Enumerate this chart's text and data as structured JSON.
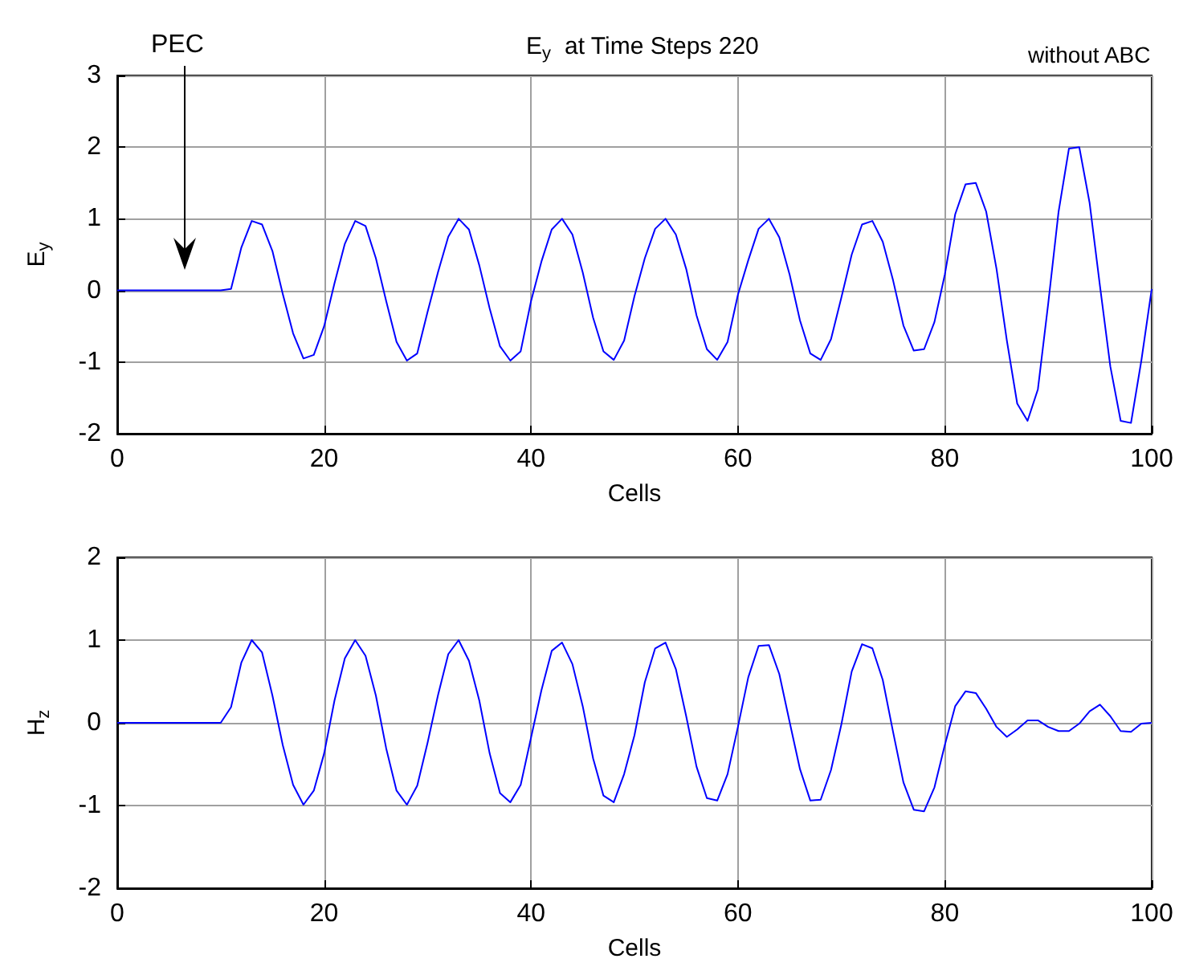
{
  "chart_data": [
    {
      "type": "line",
      "title": "E$_{y}$  at Time Steps 220",
      "xlabel": "Cells",
      "ylabel": "E$_{y}$",
      "annotations": [
        "without ABC",
        "PEC"
      ],
      "x": [
        0,
        1,
        2,
        3,
        4,
        5,
        6,
        7,
        8,
        9,
        10,
        11,
        12,
        13,
        14,
        15,
        16,
        17,
        18,
        19,
        20,
        21,
        22,
        23,
        24,
        25,
        26,
        27,
        28,
        29,
        30,
        31,
        32,
        33,
        34,
        35,
        36,
        37,
        38,
        39,
        40,
        41,
        42,
        43,
        44,
        45,
        46,
        47,
        48,
        49,
        50,
        51,
        52,
        53,
        54,
        55,
        56,
        57,
        58,
        59,
        60,
        61,
        62,
        63,
        64,
        65,
        66,
        67,
        68,
        69,
        70,
        71,
        72,
        73,
        74,
        75,
        76,
        77,
        78,
        79,
        80,
        81,
        82,
        83,
        84,
        85,
        86,
        87,
        88,
        89,
        90,
        91,
        92,
        93,
        94,
        95,
        96,
        97,
        98,
        99,
        100
      ],
      "series": [
        {
          "color": "#0000ff",
          "values": [
            0,
            0,
            0,
            0,
            0,
            0,
            0,
            0,
            0,
            0,
            0,
            0.02,
            0.6,
            0.97,
            0.92,
            0.55,
            -0.05,
            -0.6,
            -0.95,
            -0.9,
            -0.5,
            0.1,
            0.65,
            0.97,
            0.9,
            0.45,
            -0.15,
            -0.72,
            -0.98,
            -0.88,
            -0.3,
            0.25,
            0.75,
            1,
            0.85,
            0.35,
            -0.25,
            -0.78,
            -0.98,
            -0.85,
            -0.15,
            0.4,
            0.85,
            1,
            0.78,
            0.25,
            -0.38,
            -0.85,
            -0.97,
            -0.7,
            -0.08,
            0.45,
            0.86,
            1,
            0.78,
            0.3,
            -0.35,
            -0.82,
            -0.97,
            -0.72,
            -0.06,
            0.42,
            0.86,
            1,
            0.74,
            0.22,
            -0.42,
            -0.88,
            -0.97,
            -0.68,
            -0.1,
            0.5,
            0.92,
            0.97,
            0.68,
            0.14,
            -0.49,
            -0.84,
            -0.82,
            -0.44,
            0.22,
            1.06,
            1.48,
            1.5,
            1.1,
            0.3,
            -0.7,
            -1.58,
            -1.82,
            -1.38,
            -0.18,
            1.1,
            1.98,
            2,
            1.22,
            0.06,
            -1.06,
            -1.82,
            -1.85,
            -0.98,
            0.02
          ]
        }
      ],
      "xlim": [
        0,
        100
      ],
      "xticks": [
        0,
        20,
        40,
        60,
        80,
        100
      ],
      "ylim": [
        -2,
        3
      ],
      "yticks": [
        -2,
        -1,
        0,
        1,
        2,
        3
      ],
      "grid": true
    },
    {
      "type": "line",
      "xlabel": "Cells",
      "ylabel": "H$_{z}$",
      "x": [
        0,
        1,
        2,
        3,
        4,
        5,
        6,
        7,
        8,
        9,
        10,
        11,
        12,
        13,
        14,
        15,
        16,
        17,
        18,
        19,
        20,
        21,
        22,
        23,
        24,
        25,
        26,
        27,
        28,
        29,
        30,
        31,
        32,
        33,
        34,
        35,
        36,
        37,
        38,
        39,
        40,
        41,
        42,
        43,
        44,
        45,
        46,
        47,
        48,
        49,
        50,
        51,
        52,
        53,
        54,
        55,
        56,
        57,
        58,
        59,
        60,
        61,
        62,
        63,
        64,
        65,
        66,
        67,
        68,
        69,
        70,
        71,
        72,
        73,
        74,
        75,
        76,
        77,
        78,
        79,
        80,
        81,
        82,
        83,
        84,
        85,
        86,
        87,
        88,
        89,
        90,
        91,
        92,
        93,
        94,
        95,
        96,
        97,
        98,
        99,
        100
      ],
      "series": [
        {
          "color": "#0000ff",
          "values": [
            0,
            0,
            0,
            0,
            0,
            0,
            0,
            0,
            0,
            0,
            0,
            0.19,
            0.73,
            1,
            0.85,
            0.33,
            -0.27,
            -0.75,
            -0.99,
            -0.82,
            -0.37,
            0.27,
            0.78,
            1,
            0.81,
            0.33,
            -0.31,
            -0.82,
            -0.99,
            -0.76,
            -0.24,
            0.33,
            0.83,
            1,
            0.75,
            0.27,
            -0.37,
            -0.85,
            -0.96,
            -0.75,
            -0.18,
            0.39,
            0.87,
            0.97,
            0.71,
            0.2,
            -0.43,
            -0.88,
            -0.96,
            -0.62,
            -0.15,
            0.49,
            0.9,
            0.97,
            0.65,
            0.08,
            -0.53,
            -0.91,
            -0.94,
            -0.62,
            -0.05,
            0.55,
            0.93,
            0.94,
            0.59,
            0.01,
            -0.56,
            -0.94,
            -0.93,
            -0.57,
            -0.02,
            0.62,
            0.95,
            0.9,
            0.52,
            -0.11,
            -0.72,
            -1.05,
            -1.07,
            -0.78,
            -0.27,
            0.2,
            0.38,
            0.36,
            0.17,
            -0.05,
            -0.17,
            -0.08,
            0.03,
            0.03,
            -0.05,
            -0.1,
            -0.1,
            -0.01,
            0.14,
            0.22,
            0.08,
            -0.1,
            -0.11,
            -0.01,
            0
          ]
        }
      ],
      "xlim": [
        0,
        100
      ],
      "xticks": [
        0,
        20,
        40,
        60,
        80,
        100
      ],
      "ylim": [
        -2,
        2
      ],
      "yticks": [
        -2,
        -1,
        0,
        1,
        2
      ],
      "grid": true
    }
  ]
}
